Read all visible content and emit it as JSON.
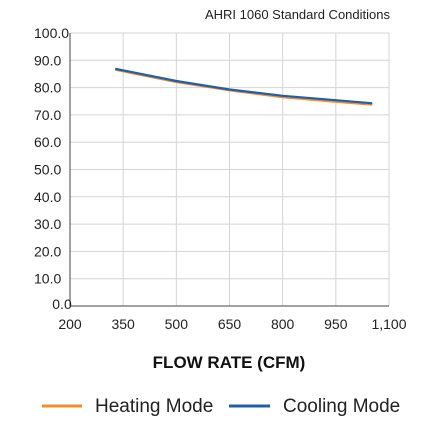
{
  "chart_data": {
    "type": "line",
    "annotation": "AHRI 1060 Standard Conditions",
    "xlabel": "FLOW RATE (CFM)",
    "ylabel": "",
    "xlim": [
      200,
      1100
    ],
    "ylim": [
      0,
      100
    ],
    "x_ticks": [
      200,
      350,
      500,
      650,
      800,
      950,
      1100
    ],
    "x_tick_labels": [
      "200",
      "350",
      "500",
      "650",
      "800",
      "950",
      "1,100"
    ],
    "y_ticks": [
      0,
      10,
      20,
      30,
      40,
      50,
      60,
      70,
      80,
      90,
      100
    ],
    "y_tick_labels": [
      "0.0",
      "10.0",
      "20.0",
      "30.0",
      "40.0",
      "50.0",
      "60.0",
      "70.0",
      "80.0",
      "90.0",
      "100.0"
    ],
    "grid": true,
    "legend_position": "bottom",
    "series": [
      {
        "name": "Heating Mode",
        "color": "#f28c28",
        "x": [
          330,
          500,
          650,
          800,
          950,
          1050
        ],
        "y": [
          86.5,
          82.0,
          79.0,
          76.5,
          74.8,
          73.8
        ]
      },
      {
        "name": "Cooling Mode",
        "color": "#1f5fa8",
        "x": [
          330,
          500,
          650,
          800,
          950,
          1050
        ],
        "y": [
          86.8,
          82.4,
          79.3,
          77.0,
          75.4,
          74.3
        ]
      }
    ]
  }
}
